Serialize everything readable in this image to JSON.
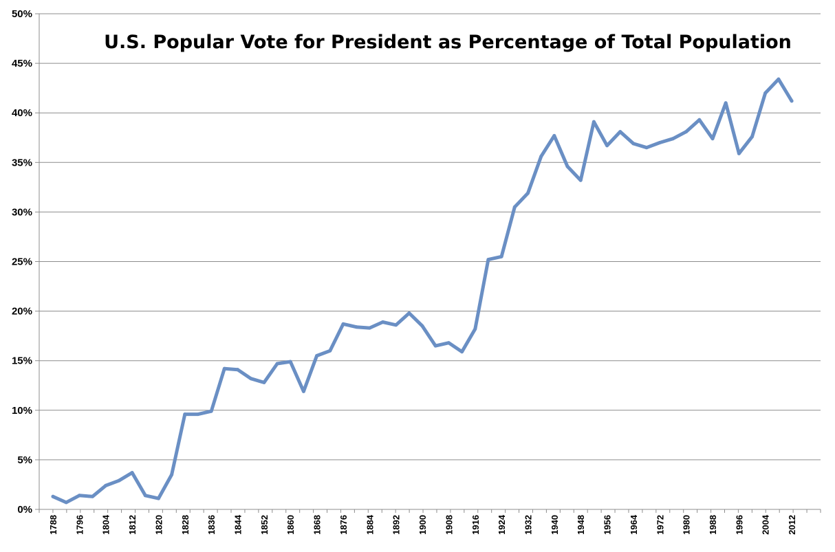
{
  "chart_data": {
    "type": "line",
    "title": "U.S. Popular Vote for President as Percentage of Total Population",
    "xlabel": "",
    "ylabel": "",
    "ylim": [
      0,
      50
    ],
    "y_tick_values": [
      0,
      5,
      10,
      15,
      20,
      25,
      30,
      35,
      40,
      45,
      50
    ],
    "y_tick_labels": [
      "0%",
      "5%",
      "10%",
      "15%",
      "20%",
      "25%",
      "30%",
      "35%",
      "40%",
      "45%",
      "50%"
    ],
    "x_tick_labels": [
      "1788",
      "1796",
      "1804",
      "1812",
      "1820",
      "1828",
      "1836",
      "1844",
      "1852",
      "1860",
      "1868",
      "1876",
      "1884",
      "1892",
      "1900",
      "1908",
      "1916",
      "1924",
      "1932",
      "1940",
      "1948",
      "1956",
      "1964",
      "1972",
      "1980",
      "1988",
      "1996",
      "2004",
      "2012"
    ],
    "grid": true,
    "legend": "none",
    "series_color": "#6a8fc4",
    "x": [
      "1788",
      "1792",
      "1796",
      "1800",
      "1804",
      "1808",
      "1812",
      "1816",
      "1820",
      "1824",
      "1828",
      "1832",
      "1836",
      "1840",
      "1844",
      "1848",
      "1852",
      "1856",
      "1860",
      "1864",
      "1868",
      "1872",
      "1876",
      "1880",
      "1884",
      "1888",
      "1892",
      "1896",
      "1900",
      "1904",
      "1908",
      "1912",
      "1916",
      "1920",
      "1924",
      "1928",
      "1932",
      "1936",
      "1940",
      "1944",
      "1948",
      "1952",
      "1956",
      "1960",
      "1964",
      "1968",
      "1972",
      "1976",
      "1980",
      "1984",
      "1988",
      "1992",
      "1996",
      "2000",
      "2004",
      "2008",
      "2012"
    ],
    "series": [
      {
        "values": [
          1.3,
          0.7,
          1.4,
          1.3,
          2.4,
          2.9,
          3.7,
          1.4,
          1.1,
          3.5,
          9.6,
          9.6,
          9.9,
          14.2,
          14.1,
          13.2,
          12.8,
          14.7,
          14.9,
          11.9,
          15.5,
          16.0,
          18.7,
          18.4,
          18.3,
          18.9,
          18.6,
          19.8,
          18.5,
          16.5,
          16.8,
          15.9,
          18.2,
          25.2,
          25.5,
          30.5,
          31.9,
          35.6,
          37.7,
          34.6,
          33.2,
          39.1,
          36.7,
          38.1,
          36.9,
          36.5,
          37.0,
          37.4,
          38.1,
          39.3,
          37.4,
          41.0,
          35.9,
          37.6,
          42.0,
          43.4,
          41.2
        ]
      }
    ]
  }
}
